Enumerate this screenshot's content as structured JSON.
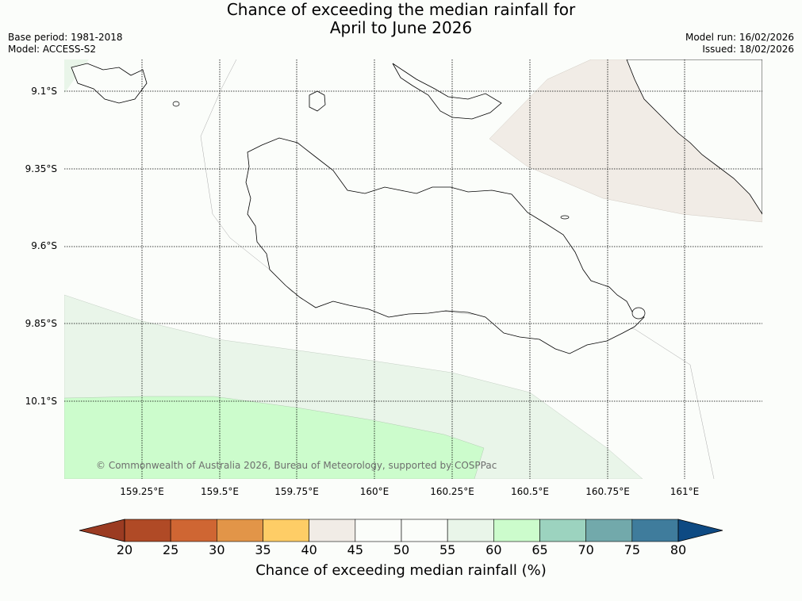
{
  "title": {
    "line1": "Chance of exceeding the median rainfall for",
    "line2": "April to June 2026"
  },
  "meta": {
    "base_period": "Base period: 1981-2018",
    "model": "Model: ACCESS-S2",
    "model_run": "Model run: 16/02/2026",
    "issued": "Issued: 18/02/2026"
  },
  "map": {
    "latitudes": [
      "9.1°S",
      "9.35°S",
      "9.6°S",
      "9.85°S",
      "10.1°S"
    ],
    "longitudes": [
      "159.25°E",
      "159.5°E",
      "159.75°E",
      "160°E",
      "160.25°E",
      "160.5°E",
      "160.75°E",
      "161°E"
    ],
    "credit": "© Commonwealth of Australia 2026, Bureau of Meteorology, supported by COSPPac"
  },
  "colorbar": {
    "label": "Chance of exceeding median rainfall (%)",
    "ticks": [
      "20",
      "25",
      "30",
      "35",
      "40",
      "45",
      "50",
      "55",
      "60",
      "65",
      "70",
      "75",
      "80"
    ],
    "under_color": "#9b3b22",
    "over_color": "#0e4a83",
    "colors": [
      "#b04a26",
      "#cf6633",
      "#e29548",
      "#fecd66",
      "#f1ece6",
      "#fbfdfa",
      "#fbfdfa",
      "#e9f5e9",
      "#ccfccc",
      "#9cd3bf",
      "#72a9ab",
      "#3f7c9c"
    ]
  },
  "shading_colors": {
    "above_55": "#e9f5e9",
    "above_60": "#ccfccc",
    "below_45": "#f1ece6",
    "below_40": "#fecd66"
  }
}
